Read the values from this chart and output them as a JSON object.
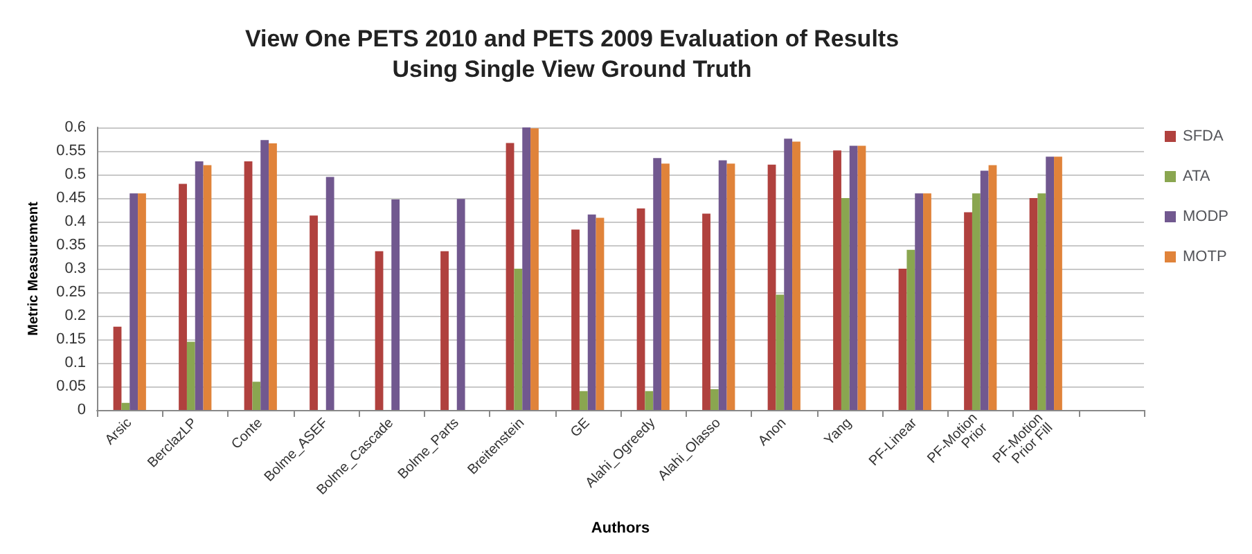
{
  "chart_data": {
    "type": "bar",
    "title": "View One PETS 2010 and PETS 2009 Evaluation of Results\nUsing Single View Ground Truth",
    "xlabel": "Authors",
    "ylabel": "Metric Measurement",
    "categories": [
      "Arsic",
      "BerclazLP",
      "Conte",
      "Bolme_ASEF",
      "Bolme_Cascade",
      "Bolme_Parts",
      "Breitenstein",
      "GE",
      "Alahi_Ogreedy",
      "Alahi_Olasso",
      "Anon",
      "Yang",
      "PF-Linear",
      "PF-Motion Prior",
      "PF-Motion Prior Fill",
      null
    ],
    "series": [
      {
        "name": "SFDA",
        "color": "#b0413e",
        "values": [
          0.177,
          0.48,
          0.528,
          0.413,
          0.337,
          0.337,
          0.567,
          0.383,
          0.428,
          0.417,
          0.521,
          0.551,
          0.3,
          0.42,
          0.45,
          null
        ]
      },
      {
        "name": "ATA",
        "color": "#8aa650",
        "values": [
          0.015,
          0.145,
          0.06,
          null,
          null,
          null,
          0.3,
          0.04,
          0.04,
          0.044,
          0.245,
          0.45,
          0.34,
          0.46,
          0.46,
          null
        ]
      },
      {
        "name": "MODP",
        "color": "#71588f",
        "values": [
          0.46,
          0.528,
          0.573,
          0.495,
          0.447,
          0.448,
          0.6,
          0.415,
          0.535,
          0.53,
          0.576,
          0.561,
          0.46,
          0.508,
          0.538,
          null
        ]
      },
      {
        "name": "MOTP",
        "color": "#e0833a",
        "values": [
          0.46,
          0.52,
          0.566,
          null,
          null,
          null,
          0.598,
          0.408,
          0.523,
          0.523,
          0.57,
          0.561,
          0.46,
          0.52,
          0.538,
          null
        ]
      }
    ],
    "ylim": [
      0,
      0.6
    ],
    "yticks": [
      0,
      0.05,
      0.1,
      0.15,
      0.2,
      0.25,
      0.3,
      0.35,
      0.4,
      0.45,
      0.5,
      0.55,
      0.6
    ],
    "grid": "y",
    "legend": "right"
  }
}
